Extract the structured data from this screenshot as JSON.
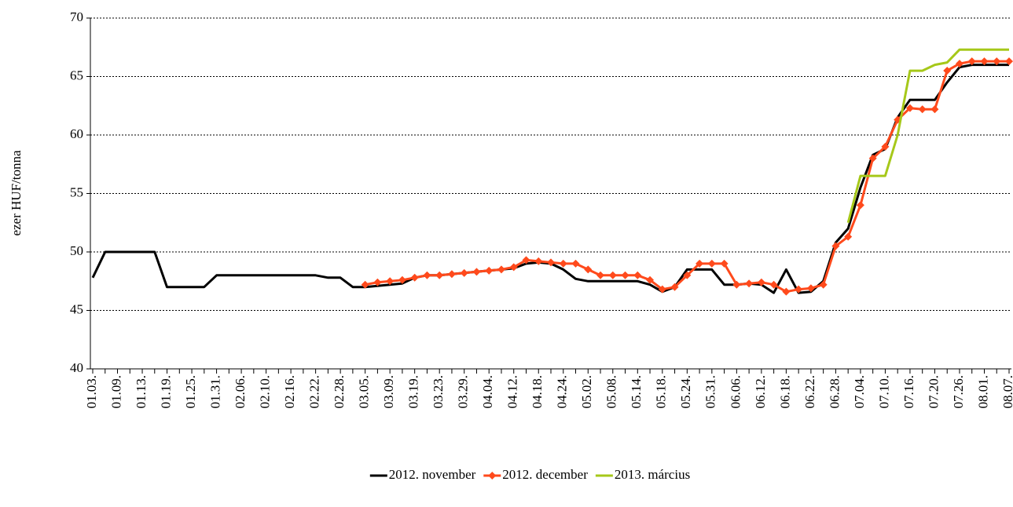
{
  "chart_data": {
    "type": "line",
    "ylabel": "ezer HUF/tonna",
    "categories": [
      "01.03.",
      null,
      "01.09.",
      null,
      "01.13.",
      null,
      "01.19.",
      null,
      "01.25.",
      null,
      "01.31.",
      null,
      "02.06.",
      null,
      "02.10.",
      null,
      "02.16.",
      null,
      "02.22.",
      null,
      "02.28.",
      null,
      "03.05.",
      null,
      "03.09.",
      null,
      "03.19.",
      null,
      "03.23.",
      null,
      "03.29.",
      null,
      "04.04.",
      null,
      "04.12.",
      null,
      "04.18.",
      null,
      "04.24.",
      null,
      "05.02.",
      null,
      "05.08.",
      null,
      "05.14.",
      null,
      "05.18.",
      null,
      "05.24.",
      null,
      "05.31.",
      null,
      "06.06.",
      null,
      "06.12.",
      null,
      "06.18.",
      null,
      "06.22.",
      null,
      "06.28.",
      null,
      "07.04.",
      null,
      "07.10.",
      null,
      "07.16.",
      null,
      "07.20.",
      null,
      "07.26.",
      null,
      "08.01.",
      null,
      "08.07."
    ],
    "series": [
      {
        "name": "2012. november",
        "color": "#000000",
        "marker": "none",
        "values": [
          47.8,
          50,
          50,
          50,
          50,
          50,
          47,
          47,
          47,
          47,
          48,
          48,
          48,
          48,
          48,
          48,
          48,
          48,
          48,
          47.8,
          47.8,
          47,
          47,
          47.1,
          47.2,
          47.3,
          47.8,
          48,
          48,
          48.1,
          48.2,
          48.3,
          48.4,
          48.5,
          48.6,
          49,
          49.1,
          49,
          48.5,
          47.7,
          47.5,
          47.5,
          47.5,
          47.5,
          47.5,
          47.2,
          46.6,
          47,
          48.5,
          48.5,
          48.5,
          47.2,
          47.2,
          47.3,
          47.2,
          46.5,
          48.5,
          46.5,
          46.6,
          47.5,
          50.8,
          52,
          55.5,
          58.3,
          58.8,
          61.5,
          63,
          63,
          63,
          64.5,
          65.8,
          66,
          66,
          66,
          66
        ]
      },
      {
        "name": "2012. december",
        "color": "#ff4a1c",
        "marker": "diamond",
        "values": [
          null,
          null,
          null,
          null,
          null,
          null,
          null,
          null,
          null,
          null,
          null,
          null,
          null,
          null,
          null,
          null,
          null,
          null,
          null,
          null,
          null,
          null,
          47.2,
          47.4,
          47.5,
          47.6,
          47.8,
          48,
          48,
          48.1,
          48.2,
          48.3,
          48.4,
          48.5,
          48.7,
          49.3,
          49.2,
          49.1,
          49,
          49,
          48.5,
          48,
          48,
          48,
          48,
          47.6,
          46.8,
          47,
          48,
          49,
          49,
          49,
          47.2,
          47.3,
          47.4,
          47.2,
          46.6,
          46.8,
          46.9,
          47.2,
          50.5,
          51.3,
          54,
          58,
          59,
          61.3,
          62.3,
          62.2,
          62.2,
          65.5,
          66.1,
          66.3,
          66.3,
          66.3,
          66.3
        ]
      },
      {
        "name": "2013. március",
        "color": "#a6c81a",
        "marker": "none",
        "values": [
          null,
          null,
          null,
          null,
          null,
          null,
          null,
          null,
          null,
          null,
          null,
          null,
          null,
          null,
          null,
          null,
          null,
          null,
          null,
          null,
          null,
          null,
          null,
          null,
          null,
          null,
          null,
          null,
          null,
          null,
          null,
          null,
          null,
          null,
          null,
          null,
          null,
          null,
          null,
          null,
          null,
          null,
          null,
          null,
          null,
          null,
          null,
          null,
          null,
          null,
          null,
          null,
          null,
          null,
          null,
          null,
          null,
          null,
          null,
          null,
          null,
          52.5,
          56.5,
          56.5,
          56.5,
          60,
          65.5,
          65.5,
          66,
          66.2,
          67.3,
          67.3,
          67.3,
          67.3,
          67.3
        ]
      }
    ],
    "ylim": [
      40,
      70
    ],
    "yticks": [
      40,
      45,
      50,
      55,
      60,
      65,
      70
    ],
    "grid": true,
    "legend": "bottom"
  }
}
